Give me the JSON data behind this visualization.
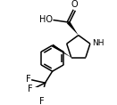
{
  "bg_color": "#ffffff",
  "line_color": "#000000",
  "line_width": 1.1,
  "font_size": 6.5,
  "fig_width": 1.31,
  "fig_height": 1.18,
  "dpi": 100,
  "xlim": [
    0,
    131
  ],
  "ylim": [
    0,
    118
  ]
}
